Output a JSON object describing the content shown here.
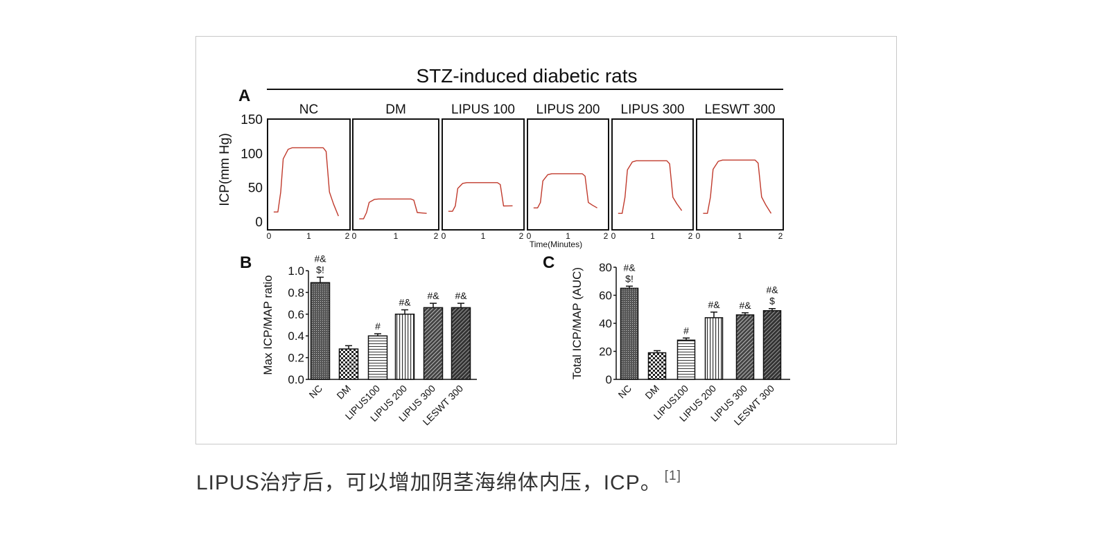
{
  "caption": {
    "text": "LIPUS治疗后，可以增加阴茎海绵体内压，ICP。",
    "ref": "[1]"
  },
  "chart_data": [
    {
      "panel": "A",
      "type": "line",
      "title": "STZ-induced diabetic rats",
      "ylabel": "ICP(mm Hg)",
      "xlabel": "Time(Minutes)",
      "ylim": [
        0,
        150
      ],
      "yticks": [
        "0",
        "50",
        "100",
        "150"
      ],
      "xlim": [
        0,
        2
      ],
      "xticks": [
        "0",
        "1",
        "2"
      ],
      "line_color": "#c0392b",
      "groups": [
        {
          "name": "NC",
          "baseline_mmHg": 14,
          "plateau_mmHg": 108,
          "end_mmHg": 8
        },
        {
          "name": "DM",
          "baseline_mmHg": 4,
          "plateau_mmHg": 33,
          "end_mmHg": 12
        },
        {
          "name": "LIPUS 100",
          "baseline_mmHg": 15,
          "plateau_mmHg": 57,
          "end_mmHg": 23
        },
        {
          "name": "LIPUS 200",
          "baseline_mmHg": 20,
          "plateau_mmHg": 70,
          "end_mmHg": 20
        },
        {
          "name": "LIPUS 300",
          "baseline_mmHg": 12,
          "plateau_mmHg": 89,
          "end_mmHg": 16
        },
        {
          "name": "LESWT 300",
          "baseline_mmHg": 12,
          "plateau_mmHg": 90,
          "end_mmHg": 12
        }
      ]
    },
    {
      "panel": "B",
      "type": "bar",
      "ylabel": "Max ICP/MAP ratio",
      "ylim": [
        0,
        1.0
      ],
      "yticks": [
        "0.0",
        "0.2",
        "0.4",
        "0.6",
        "0.8",
        "1.0"
      ],
      "categories": [
        "NC",
        "DM",
        "LIPUS100",
        "LIPUS 200",
        "LIPUS 300",
        "LESWT 300"
      ],
      "values": [
        0.89,
        0.28,
        0.4,
        0.6,
        0.66,
        0.66
      ],
      "errors": [
        0.05,
        0.03,
        0.02,
        0.04,
        0.04,
        0.04
      ],
      "annotations": [
        [
          "#&",
          "$!"
        ],
        [],
        [
          "#"
        ],
        [
          "#&"
        ],
        [
          "#&"
        ],
        [
          "#&"
        ]
      ]
    },
    {
      "panel": "C",
      "type": "bar",
      "ylabel": "Total ICP/MAP (AUC)",
      "ylim": [
        0,
        80
      ],
      "yticks": [
        "0",
        "20",
        "40",
        "60",
        "80"
      ],
      "categories": [
        "NC",
        "DM",
        "LIPUS100",
        "LIPUS 200",
        "LIPUS 300",
        "LESWT 300"
      ],
      "values": [
        65,
        19,
        28,
        44,
        46,
        49
      ],
      "errors": [
        1.5,
        1.5,
        1.5,
        4,
        1.5,
        1.5
      ],
      "annotations": [
        [
          "#&",
          "$!"
        ],
        [],
        [
          "#"
        ],
        [
          "#&"
        ],
        [
          "#&"
        ],
        [
          "#&",
          "$"
        ]
      ]
    }
  ]
}
